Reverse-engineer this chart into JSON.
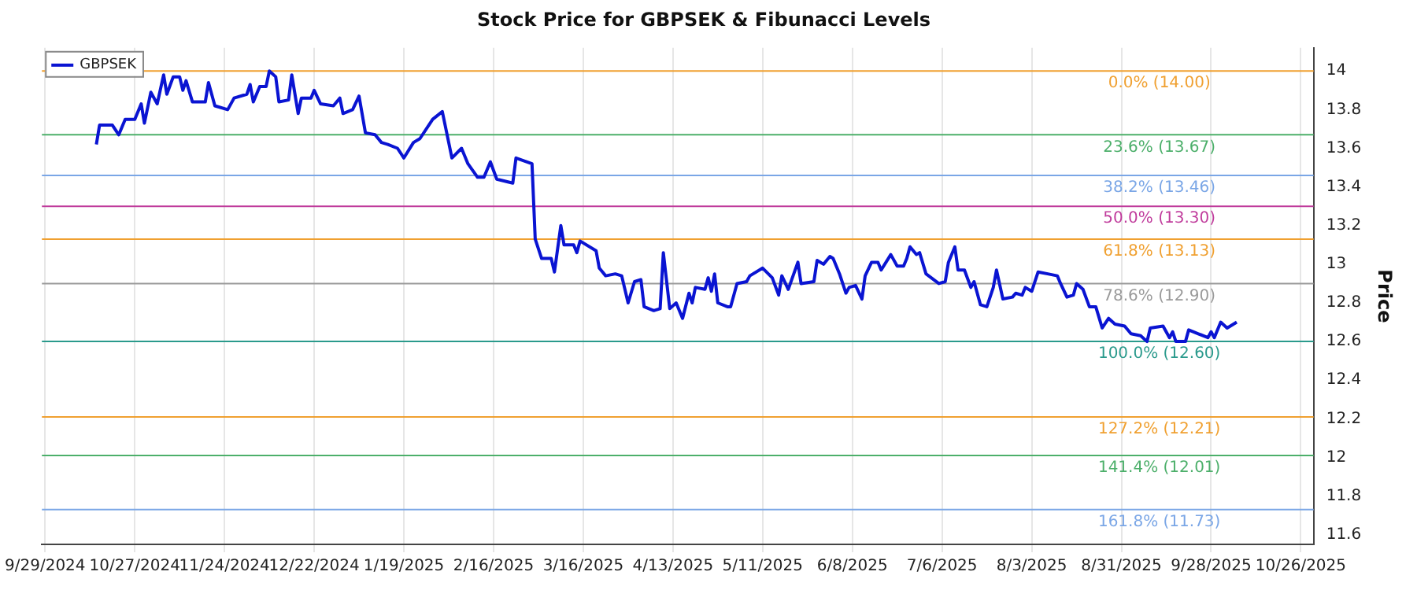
{
  "chart_data": {
    "type": "line",
    "title": "Stock Price for GBPSEK & Fibunacci Levels",
    "ylabel": "Price",
    "xlim": [
      "2024-09-28",
      "2025-10-30"
    ],
    "ylim": [
      11.55,
      14.12
    ],
    "xticks": [
      {
        "value": "2024-09-29",
        "label": "9/29/2024"
      },
      {
        "value": "2024-10-27",
        "label": "10/27/2024"
      },
      {
        "value": "2024-11-24",
        "label": "11/24/2024"
      },
      {
        "value": "2024-12-22",
        "label": "12/22/2024"
      },
      {
        "value": "2025-01-19",
        "label": "1/19/2025"
      },
      {
        "value": "2025-02-16",
        "label": "2/16/2025"
      },
      {
        "value": "2025-03-16",
        "label": "3/16/2025"
      },
      {
        "value": "2025-04-13",
        "label": "4/13/2025"
      },
      {
        "value": "2025-05-11",
        "label": "5/11/2025"
      },
      {
        "value": "2025-06-08",
        "label": "6/8/2025"
      },
      {
        "value": "2025-07-06",
        "label": "7/6/2025"
      },
      {
        "value": "2025-08-03",
        "label": "8/3/2025"
      },
      {
        "value": "2025-08-31",
        "label": "8/31/2025"
      },
      {
        "value": "2025-09-28",
        "label": "9/28/2025"
      },
      {
        "value": "2025-10-26",
        "label": "10/26/2025"
      }
    ],
    "yticks": [
      11.6,
      11.8,
      12,
      12.2,
      12.4,
      12.6,
      12.8,
      13,
      13.2,
      13.4,
      13.6,
      13.8,
      14
    ],
    "grid": "x",
    "legend": "top left",
    "marker": "none",
    "line_style": "solid",
    "x": [
      "2024-10-15",
      "2024-10-16",
      "2024-10-20",
      "2024-10-22",
      "2024-10-24",
      "2024-10-27",
      "2024-10-29",
      "2024-10-30",
      "2024-11-01",
      "2024-11-03",
      "2024-11-05",
      "2024-11-06",
      "2024-11-08",
      "2024-11-10",
      "2024-11-11",
      "2024-11-12",
      "2024-11-14",
      "2024-11-18",
      "2024-11-19",
      "2024-11-21",
      "2024-11-25",
      "2024-11-27",
      "2024-12-01",
      "2024-12-02",
      "2024-12-03",
      "2024-12-05",
      "2024-12-07",
      "2024-12-08",
      "2024-12-10",
      "2024-12-11",
      "2024-12-14",
      "2024-12-15",
      "2024-12-17",
      "2024-12-18",
      "2024-12-21",
      "2024-12-22",
      "2024-12-24",
      "2024-12-28",
      "2024-12-30",
      "2024-12-31",
      "2025-01-03",
      "2025-01-05",
      "2025-01-07",
      "2025-01-10",
      "2025-01-12",
      "2025-01-14",
      "2025-01-17",
      "2025-01-19",
      "2025-01-22",
      "2025-01-24",
      "2025-01-28",
      "2025-01-31",
      "2025-02-03",
      "2025-02-06",
      "2025-02-08",
      "2025-02-11",
      "2025-02-13",
      "2025-02-15",
      "2025-02-17",
      "2025-02-22",
      "2025-02-23",
      "2025-02-28",
      "2025-03-01",
      "2025-03-03",
      "2025-03-06",
      "2025-03-07",
      "2025-03-09",
      "2025-03-10",
      "2025-03-13",
      "2025-03-14",
      "2025-03-15",
      "2025-03-20",
      "2025-03-21",
      "2025-03-23",
      "2025-03-26",
      "2025-03-28",
      "2025-03-30",
      "2025-04-01",
      "2025-04-03",
      "2025-04-04",
      "2025-04-07",
      "2025-04-09",
      "2025-04-10",
      "2025-04-12",
      "2025-04-14",
      "2025-04-16",
      "2025-04-18",
      "2025-04-19",
      "2025-04-20",
      "2025-04-23",
      "2025-04-24",
      "2025-04-25",
      "2025-04-26",
      "2025-04-27",
      "2025-04-30",
      "2025-05-01",
      "2025-05-03",
      "2025-05-06",
      "2025-05-07",
      "2025-05-11",
      "2025-05-14",
      "2025-05-16",
      "2025-05-17",
      "2025-05-19",
      "2025-05-22",
      "2025-05-23",
      "2025-05-27",
      "2025-05-28",
      "2025-05-30",
      "2025-06-01",
      "2025-06-02",
      "2025-06-04",
      "2025-06-06",
      "2025-06-07",
      "2025-06-09",
      "2025-06-11",
      "2025-06-12",
      "2025-06-14",
      "2025-06-16",
      "2025-06-17",
      "2025-06-20",
      "2025-06-22",
      "2025-06-24",
      "2025-06-25",
      "2025-06-26",
      "2025-06-28",
      "2025-06-29",
      "2025-07-01",
      "2025-07-05",
      "2025-07-07",
      "2025-07-08",
      "2025-07-10",
      "2025-07-11",
      "2025-07-13",
      "2025-07-15",
      "2025-07-16",
      "2025-07-18",
      "2025-07-20",
      "2025-07-22",
      "2025-07-23",
      "2025-07-25",
      "2025-07-28",
      "2025-07-29",
      "2025-07-31",
      "2025-08-01",
      "2025-08-03",
      "2025-08-04",
      "2025-08-05",
      "2025-08-08",
      "2025-08-11",
      "2025-08-12",
      "2025-08-14",
      "2025-08-16",
      "2025-08-17",
      "2025-08-19",
      "2025-08-21",
      "2025-08-23",
      "2025-08-25",
      "2025-08-27",
      "2025-08-29",
      "2025-09-01",
      "2025-09-03",
      "2025-09-06",
      "2025-09-08",
      "2025-09-09",
      "2025-09-13",
      "2025-09-15",
      "2025-09-16",
      "2025-09-17",
      "2025-09-20",
      "2025-09-21",
      "2025-09-24",
      "2025-09-27",
      "2025-09-28",
      "2025-09-29",
      "2025-10-01",
      "2025-10-03",
      "2025-10-05",
      "2025-10-06"
    ],
    "series": [
      {
        "name": "GBPSEK",
        "color": "#0a14d2",
        "values": [
          13.62,
          13.72,
          13.72,
          13.67,
          13.75,
          13.75,
          13.83,
          13.73,
          13.89,
          13.83,
          13.98,
          13.88,
          13.97,
          13.97,
          13.9,
          13.95,
          13.84,
          13.84,
          13.94,
          13.82,
          13.8,
          13.86,
          13.88,
          13.93,
          13.84,
          13.92,
          13.92,
          14.0,
          13.97,
          13.84,
          13.85,
          13.98,
          13.78,
          13.86,
          13.86,
          13.9,
          13.83,
          13.82,
          13.86,
          13.78,
          13.8,
          13.87,
          13.68,
          13.67,
          13.63,
          13.62,
          13.6,
          13.55,
          13.63,
          13.65,
          13.75,
          13.79,
          13.55,
          13.6,
          13.52,
          13.45,
          13.45,
          13.53,
          13.44,
          13.42,
          13.55,
          13.52,
          13.13,
          13.03,
          13.03,
          12.96,
          13.2,
          13.1,
          13.1,
          13.06,
          13.12,
          13.07,
          12.98,
          12.94,
          12.95,
          12.94,
          12.8,
          12.91,
          12.92,
          12.78,
          12.76,
          12.77,
          13.06,
          12.77,
          12.8,
          12.72,
          12.85,
          12.8,
          12.88,
          12.87,
          12.93,
          12.86,
          12.95,
          12.8,
          12.78,
          12.78,
          12.9,
          12.91,
          12.94,
          12.98,
          12.93,
          12.84,
          12.94,
          12.87,
          13.01,
          12.9,
          12.91,
          13.02,
          13.0,
          13.04,
          13.03,
          12.95,
          12.85,
          12.88,
          12.89,
          12.82,
          12.94,
          13.01,
          13.01,
          12.97,
          13.05,
          12.99,
          12.99,
          13.03,
          13.09,
          13.05,
          13.06,
          12.95,
          12.9,
          12.91,
          13.01,
          13.09,
          12.97,
          12.97,
          12.88,
          12.91,
          12.79,
          12.78,
          12.88,
          12.97,
          12.82,
          12.83,
          12.85,
          12.84,
          12.88,
          12.86,
          12.91,
          12.96,
          12.95,
          12.94,
          12.9,
          12.83,
          12.84,
          12.9,
          12.87,
          12.78,
          12.78,
          12.67,
          12.72,
          12.69,
          12.68,
          12.64,
          12.63,
          12.6,
          12.67,
          12.68,
          12.62,
          12.65,
          12.6,
          12.6,
          12.66,
          12.64,
          12.62,
          12.65,
          12.62,
          12.7,
          12.67,
          12.69,
          12.7
        ]
      }
    ],
    "ref_lines": [
      {
        "axis": "y",
        "value": 14.0,
        "label": "0.0% (14.00)",
        "color": "#f0a030"
      },
      {
        "axis": "y",
        "value": 13.67,
        "label": "23.6% (13.67)",
        "color": "#4caf6a"
      },
      {
        "axis": "y",
        "value": 13.46,
        "label": "38.2% (13.46)",
        "color": "#7aa6e6"
      },
      {
        "axis": "y",
        "value": 13.3,
        "label": "50.0% (13.30)",
        "color": "#c03c9c"
      },
      {
        "axis": "y",
        "value": 13.13,
        "label": "61.8% (13.13)",
        "color": "#f0a030"
      },
      {
        "axis": "y",
        "value": 12.9,
        "label": "78.6% (12.90)",
        "color": "#9a9a9a"
      },
      {
        "axis": "y",
        "value": 12.6,
        "label": "100.0% (12.60)",
        "color": "#2a9a8c"
      },
      {
        "axis": "y",
        "value": 12.21,
        "label": "127.2% (12.21)",
        "color": "#f0a030"
      },
      {
        "axis": "y",
        "value": 12.01,
        "label": "141.4% (12.01)",
        "color": "#4caf6a"
      },
      {
        "axis": "y",
        "value": 11.73,
        "label": "161.8% (11.73)",
        "color": "#7aa6e6"
      }
    ]
  }
}
